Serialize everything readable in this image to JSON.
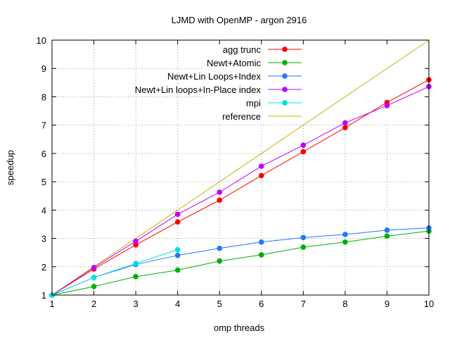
{
  "chart_data": {
    "type": "line",
    "title": "LJMD with OpenMP - argon 2916",
    "xlabel": "omp threads",
    "ylabel": "speedup",
    "xlim": [
      1,
      10
    ],
    "ylim": [
      1,
      10
    ],
    "xticks": [
      1,
      2,
      3,
      4,
      5,
      6,
      7,
      8,
      9,
      10
    ],
    "yticks": [
      1,
      2,
      3,
      4,
      5,
      6,
      7,
      8,
      9,
      10
    ],
    "grid": true,
    "legend_position": "top-right",
    "series": [
      {
        "name": "agg trunc",
        "color": "#ff0000",
        "markers": true,
        "x": [
          1,
          2,
          3,
          4,
          5,
          6,
          7,
          8,
          9,
          10
        ],
        "y": [
          1.0,
          1.92,
          2.77,
          3.58,
          4.35,
          5.22,
          6.06,
          6.91,
          7.8,
          8.6
        ]
      },
      {
        "name": "Newt+Atomic",
        "color": "#00b000",
        "markers": true,
        "x": [
          1,
          2,
          3,
          4,
          5,
          6,
          7,
          8,
          9,
          10
        ],
        "y": [
          1.0,
          1.3,
          1.65,
          1.88,
          2.2,
          2.42,
          2.69,
          2.87,
          3.08,
          3.26
        ]
      },
      {
        "name": "Newt+Lin Loops+Index",
        "color": "#1e78ff",
        "markers": true,
        "x": [
          1,
          2,
          3,
          4,
          5,
          6,
          7,
          8,
          9,
          10
        ],
        "y": [
          1.0,
          1.62,
          2.08,
          2.4,
          2.65,
          2.87,
          3.03,
          3.14,
          3.29,
          3.37
        ]
      },
      {
        "name": "Newt+Lin loops+In-Place index",
        "color": "#c000ff",
        "markers": true,
        "x": [
          1,
          2,
          3,
          4,
          5,
          6,
          7,
          8,
          9,
          10
        ],
        "y": [
          1.0,
          1.97,
          2.9,
          3.85,
          4.63,
          5.55,
          6.29,
          7.08,
          7.69,
          8.36
        ]
      },
      {
        "name": "mpi",
        "color": "#00e0e0",
        "markers": true,
        "x": [
          1,
          2,
          3,
          4
        ],
        "y": [
          1.0,
          1.62,
          2.12,
          2.6
        ]
      },
      {
        "name": "reference",
        "color": "#c8b400",
        "markers": false,
        "x": [
          1,
          10
        ],
        "y": [
          1,
          10
        ]
      }
    ]
  }
}
